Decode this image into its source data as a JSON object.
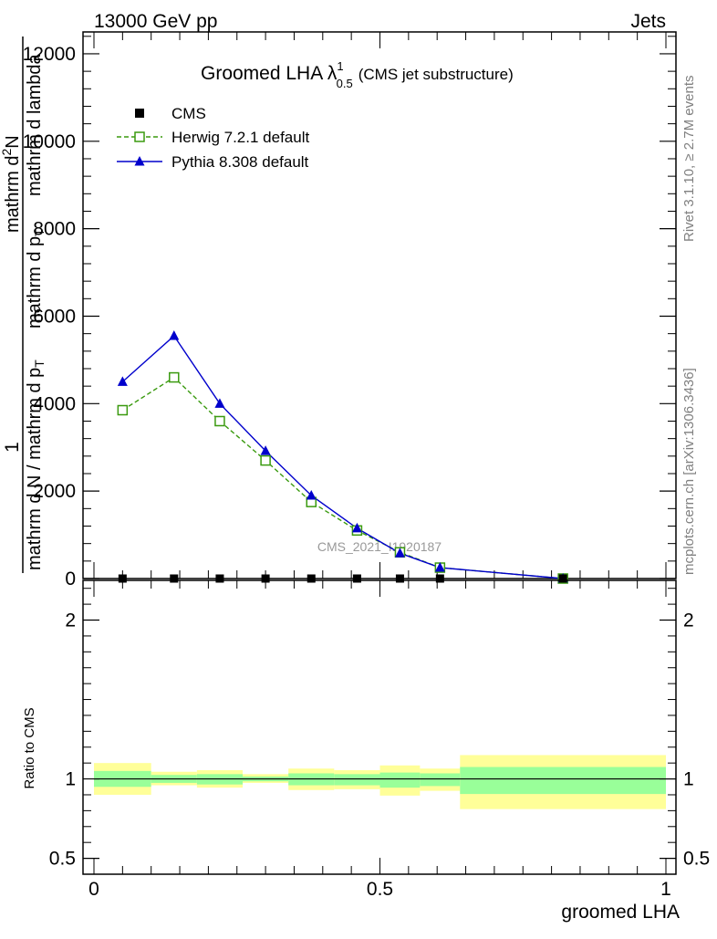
{
  "header": {
    "left": "13000 GeV pp",
    "right": "Jets"
  },
  "side": {
    "rivet": "Rivet 3.1.10, ≥ 2.7M events",
    "mcplots": "mcplots.cern.ch [arXiv:1306.3436]"
  },
  "title": {
    "main": "Groomed LHA λ",
    "sup": "1",
    "sub": "0.5",
    "tail": "(CMS jet substructure)"
  },
  "watermark": "CMS_2021_I1920187",
  "ylabel_main": {
    "one": "1",
    "denominator": "mathrm d N / mathrm d p",
    "denominator_sub": "T",
    "numerator": "mathrm d",
    "numerator_sup": "2",
    "numerator_n": "N",
    "right_of_fraction": "mathrm d p",
    "right_sub": "T",
    "right_tail": "mathrm d lambda"
  },
  "ylabel_ratio": "Ratio to CMS",
  "xlabel": "groomed LHA",
  "colors": {
    "cms": "#000000",
    "herwig": "#3a9a0f",
    "pythia": "#0000cc",
    "band_outer": "#ffff99",
    "band_inner": "#99ff99"
  },
  "chart_data": [
    {
      "type": "line",
      "title": "Groomed LHA",
      "xlim": [
        0,
        1
      ],
      "ylim": [
        0,
        12500
      ],
      "yticks": [
        0,
        2000,
        4000,
        6000,
        8000,
        10000,
        12000
      ],
      "ytick_labels": [
        "0",
        "2000",
        "4000",
        "6000",
        "8000",
        "10000",
        "12000"
      ],
      "legend_placement": "top-left",
      "series": [
        {
          "name": "CMS",
          "marker": "square-filled",
          "x": [
            0.05,
            0.14,
            0.22,
            0.3,
            0.38,
            0.46,
            0.535,
            0.605,
            0.82
          ],
          "y": [
            0,
            0,
            0,
            0,
            0,
            0,
            0,
            0,
            0
          ]
        },
        {
          "name": "Herwig 7.2.1 default",
          "marker": "square-open",
          "linestyle": "dashed",
          "x": [
            0.05,
            0.14,
            0.22,
            0.3,
            0.38,
            0.46,
            0.535,
            0.605,
            0.82
          ],
          "y": [
            3850,
            4600,
            3600,
            2700,
            1750,
            1100,
            600,
            250,
            0
          ]
        },
        {
          "name": "Pythia 8.308 default",
          "marker": "triangle-filled",
          "linestyle": "solid",
          "x": [
            0.05,
            0.14,
            0.22,
            0.3,
            0.38,
            0.46,
            0.535,
            0.605,
            0.82
          ],
          "y": [
            4500,
            5550,
            4000,
            2920,
            1900,
            1150,
            580,
            250,
            0
          ]
        }
      ]
    },
    {
      "type": "area",
      "title": "Ratio to CMS",
      "xlim": [
        0,
        1
      ],
      "ylim": [
        0.4,
        2.25
      ],
      "yticks": [
        0.5,
        1,
        2
      ],
      "ytick_labels": [
        "0.5",
        "1",
        "2"
      ],
      "xticks": [
        0,
        0.5,
        1
      ],
      "xtick_labels": [
        "0",
        "0.5",
        "1"
      ],
      "bins": [
        {
          "x0": 0.0,
          "x1": 0.1,
          "inner": [
            0.95,
            1.05
          ],
          "outer": [
            0.9,
            1.1
          ]
        },
        {
          "x0": 0.1,
          "x1": 0.18,
          "inner": [
            0.975,
            1.025
          ],
          "outer": [
            0.96,
            1.045
          ]
        },
        {
          "x0": 0.18,
          "x1": 0.26,
          "inner": [
            0.965,
            1.03
          ],
          "outer": [
            0.945,
            1.055
          ]
        },
        {
          "x0": 0.26,
          "x1": 0.34,
          "inner": [
            0.985,
            1.015
          ],
          "outer": [
            0.975,
            1.03
          ]
        },
        {
          "x0": 0.34,
          "x1": 0.42,
          "inner": [
            0.96,
            1.035
          ],
          "outer": [
            0.93,
            1.065
          ]
        },
        {
          "x0": 0.42,
          "x1": 0.5,
          "inner": [
            0.96,
            1.03
          ],
          "outer": [
            0.935,
            1.055
          ]
        },
        {
          "x0": 0.5,
          "x1": 0.57,
          "inner": [
            0.945,
            1.04
          ],
          "outer": [
            0.895,
            1.085
          ]
        },
        {
          "x0": 0.57,
          "x1": 0.64,
          "inner": [
            0.955,
            1.035
          ],
          "outer": [
            0.925,
            1.065
          ]
        },
        {
          "x0": 0.64,
          "x1": 1.0,
          "inner": [
            0.905,
            1.075
          ],
          "outer": [
            0.81,
            1.15
          ]
        }
      ]
    }
  ]
}
